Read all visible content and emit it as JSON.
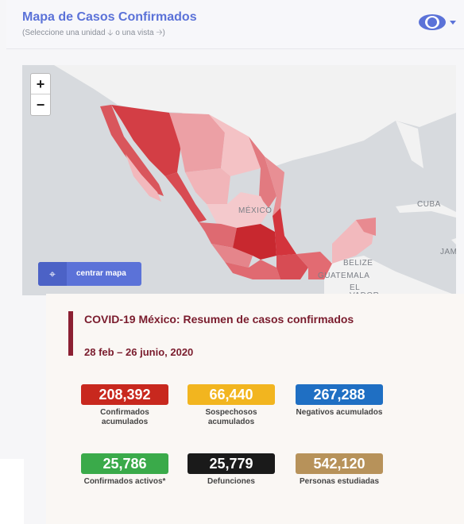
{
  "header": {
    "title": "Mapa de Casos Confirmados",
    "subtitle": "(Seleccione una unidad 🡣 o una vista 🡢)"
  },
  "map": {
    "zoom_in": "+",
    "zoom_out": "−",
    "center_button": "centrar mapa",
    "labels": {
      "mexico": "MÉXICO",
      "cuba": "CUBA",
      "belize": "BELIZE",
      "guatemala": "GUATEMALA",
      "el_salvador": "EL\nVADOR",
      "jamaica": "JAM"
    }
  },
  "summary": {
    "title": "COVID-19 México: Resumen de casos confirmados",
    "date_range": "28 feb – 26 junio, 2020",
    "stats": [
      {
        "value": "208,392",
        "label": "Confirmados acumulados",
        "color": "#c8281e"
      },
      {
        "value": "66,440",
        "label": "Sospechosos acumulados",
        "color": "#f2b51f"
      },
      {
        "value": "267,288",
        "label": "Negativos acumulados",
        "color": "#1f6fc3"
      },
      {
        "value": "25,786",
        "label": "Confirmados activos*",
        "color": "#3aaa4a"
      },
      {
        "value": "25,779",
        "label": "Defunciones",
        "color": "#1a1a1a"
      },
      {
        "value": "542,120",
        "label": "Personas estudiadas",
        "color": "#b7925a"
      }
    ]
  }
}
